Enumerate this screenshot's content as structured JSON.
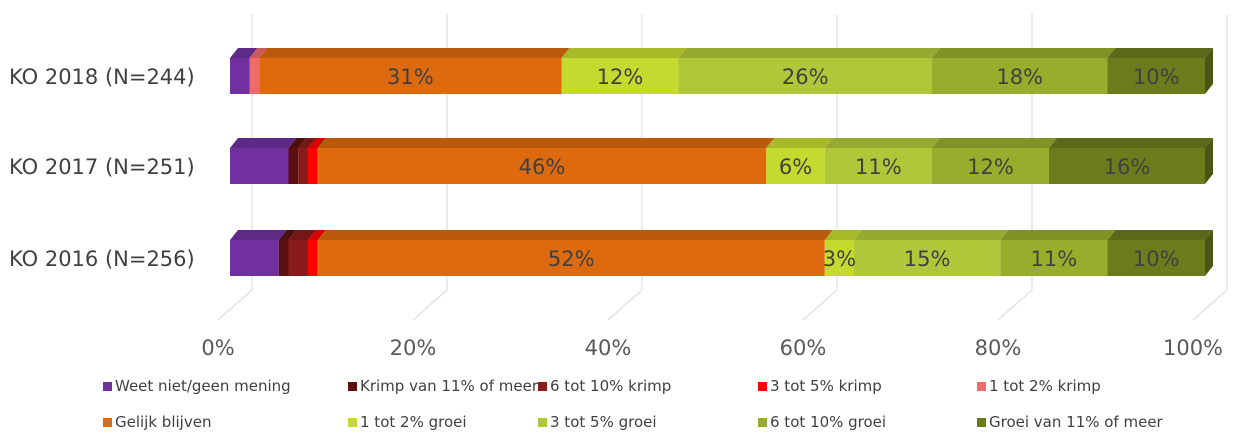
{
  "chart_data": {
    "type": "bar",
    "orientation": "horizontal",
    "stacked": "percent",
    "three_d": true,
    "categories": [
      "KO 2018 (N=244)",
      "KO 2017 (N=251)",
      "KO 2016 (N=256)"
    ],
    "series": [
      {
        "name": "Weet niet/geen mening",
        "color": "#7030A0",
        "values": [
          2,
          6,
          5
        ]
      },
      {
        "name": "Krimp van 11% of meer",
        "color": "#5A1010",
        "values": [
          0,
          1,
          1
        ]
      },
      {
        "name": "6 tot 10% krimp",
        "color": "#8B1A1A",
        "values": [
          0,
          1,
          2
        ]
      },
      {
        "name": "3 tot 5% krimp",
        "color": "#FF0000",
        "values": [
          0,
          1,
          1
        ]
      },
      {
        "name": "1 tot 2% krimp",
        "color": "#F06A6A",
        "values": [
          1,
          0,
          0
        ]
      },
      {
        "name": "Gelijk blijven",
        "color": "#DD6A0E",
        "values": [
          31,
          46,
          52
        ],
        "labels": [
          "31%",
          "46%",
          "52%"
        ]
      },
      {
        "name": "1 tot 2% groei",
        "color": "#C4DA2E",
        "values": [
          12,
          6,
          3
        ],
        "labels": [
          "12%",
          "6%",
          "3%"
        ]
      },
      {
        "name": "3 tot 5% groei",
        "color": "#B0C73A",
        "values": [
          26,
          11,
          15
        ],
        "labels": [
          "26%",
          "11%",
          "15%"
        ]
      },
      {
        "name": "6 tot 10% groei",
        "color": "#99AD2C",
        "values": [
          18,
          12,
          11
        ],
        "labels": [
          "18%",
          "12%",
          "11%"
        ]
      },
      {
        "name": "Groei van 11% of meer",
        "color": "#6D7B1C",
        "values": [
          10,
          16,
          10
        ],
        "labels": [
          "10%",
          "16%",
          "10%"
        ]
      }
    ],
    "x_ticks": [
      "0%",
      "20%",
      "40%",
      "60%",
      "80%",
      "100%"
    ],
    "xlim": [
      0,
      100
    ],
    "grid": true,
    "legend_position": "bottom"
  }
}
